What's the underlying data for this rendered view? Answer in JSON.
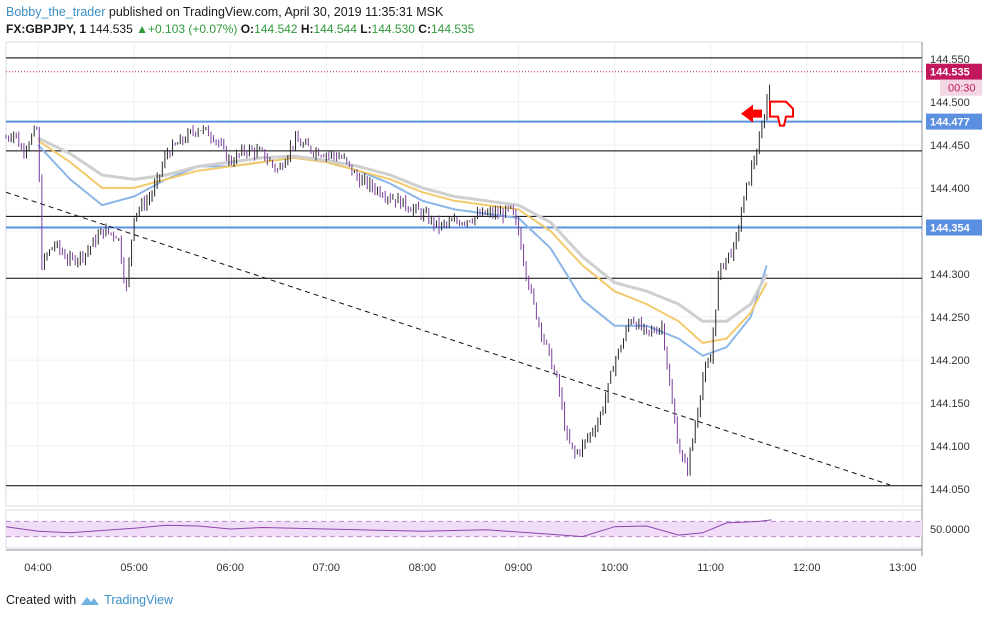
{
  "header": {
    "author": "Bobby_the_trader",
    "published": "published on TradingView.com, April 30, 2019 11:35:31 MSK",
    "symbol": "FX:GBPJPY, 1",
    "price": "144.535",
    "change_arrow": "▲",
    "change": "+0.103 (+0.07%)",
    "o_label": "O:",
    "o": "144.542",
    "h_label": "H:",
    "h": "144.544",
    "l_label": "L:",
    "l": "144.530",
    "c_label": "C:",
    "c": "144.535"
  },
  "footer": {
    "created_with": "Created with",
    "brand": "TradingView",
    "logo_icon": "tradingview-logo-icon"
  },
  "colors": {
    "candle": "#4a4a4a",
    "candle_up": "#2a2a2a",
    "candle_down": "#7b3f9e",
    "ma_fast": "#8ab6e8",
    "ma_mid": "#f2c96b",
    "ma_slow": "#cfcfcf",
    "level_blue": "#5b8fe0",
    "level_black": "#000000",
    "price_tag": "#c2185b",
    "rsi_line": "#8e44ad",
    "rsi_band": "#f1dcf7",
    "grid": "#eef0f3",
    "annotation_red": "#ff0000"
  },
  "chart_data": {
    "type": "candlestick",
    "instrument": "FX:GBPJPY",
    "timeframe": "1",
    "x_tick_labels": [
      "04:00",
      "05:00",
      "06:00",
      "07:00",
      "08:00",
      "09:00",
      "10:00",
      "11:00",
      "12:00",
      "13:00"
    ],
    "y_tick_labels": [
      "144.550",
      "144.500",
      "144.450",
      "144.400",
      "144.350",
      "144.300",
      "144.250",
      "144.200",
      "144.150",
      "144.100",
      "144.050"
    ],
    "ylim": [
      144.02,
      144.57
    ],
    "current_price": {
      "value": "144.535",
      "countdown": "00:30"
    },
    "horizontal_levels": [
      {
        "value": 144.551,
        "color": "black",
        "label": ""
      },
      {
        "value": 144.477,
        "color": "blue",
        "label": "144.477"
      },
      {
        "value": 144.443,
        "color": "black",
        "label": ""
      },
      {
        "value": 144.367,
        "color": "black",
        "label": ""
      },
      {
        "value": 144.354,
        "color": "blue",
        "label": "144.354"
      },
      {
        "value": 144.295,
        "color": "black",
        "label": ""
      },
      {
        "value": 144.054,
        "color": "black",
        "label": ""
      }
    ],
    "trendline": {
      "style": "dashed",
      "from": {
        "time": "03:40",
        "price": 144.395
      },
      "to": {
        "time": "12:52",
        "price": 144.055
      }
    },
    "price_path": [
      [
        "03:40",
        144.458
      ],
      [
        "03:45",
        144.465
      ],
      [
        "03:50",
        144.443
      ],
      [
        "04:00",
        144.47
      ],
      [
        "04:02",
        144.31
      ],
      [
        "04:10",
        144.335
      ],
      [
        "04:20",
        144.315
      ],
      [
        "04:30",
        144.325
      ],
      [
        "04:40",
        144.35
      ],
      [
        "04:50",
        144.345
      ],
      [
        "04:55",
        144.28
      ],
      [
        "05:00",
        144.37
      ],
      [
        "05:10",
        144.39
      ],
      [
        "05:15",
        144.41
      ],
      [
        "05:20",
        144.44
      ],
      [
        "05:30",
        144.455
      ],
      [
        "05:40",
        144.47
      ],
      [
        "05:50",
        144.46
      ],
      [
        "06:00",
        144.43
      ],
      [
        "06:10",
        144.445
      ],
      [
        "06:20",
        144.44
      ],
      [
        "06:30",
        144.42
      ],
      [
        "06:40",
        144.455
      ],
      [
        "06:50",
        144.445
      ],
      [
        "07:00",
        144.44
      ],
      [
        "07:10",
        144.435
      ],
      [
        "07:20",
        144.41
      ],
      [
        "07:30",
        144.4
      ],
      [
        "07:40",
        144.39
      ],
      [
        "07:50",
        144.38
      ],
      [
        "08:00",
        144.37
      ],
      [
        "08:10",
        144.355
      ],
      [
        "08:20",
        144.36
      ],
      [
        "08:30",
        144.365
      ],
      [
        "08:40",
        144.37
      ],
      [
        "08:50",
        144.37
      ],
      [
        "08:55",
        144.375
      ],
      [
        "09:00",
        144.35
      ],
      [
        "09:05",
        144.3
      ],
      [
        "09:10",
        144.26
      ],
      [
        "09:15",
        144.23
      ],
      [
        "09:20",
        144.2
      ],
      [
        "09:25",
        144.17
      ],
      [
        "09:30",
        144.11
      ],
      [
        "09:35",
        144.09
      ],
      [
        "09:40",
        144.1
      ],
      [
        "09:50",
        144.13
      ],
      [
        "09:55",
        144.16
      ],
      [
        "10:00",
        144.2
      ],
      [
        "10:05",
        144.22
      ],
      [
        "10:10",
        144.25
      ],
      [
        "10:20",
        144.23
      ],
      [
        "10:30",
        144.24
      ],
      [
        "10:35",
        144.16
      ],
      [
        "10:40",
        144.1
      ],
      [
        "10:45",
        144.07
      ],
      [
        "10:50",
        144.12
      ],
      [
        "10:55",
        144.18
      ],
      [
        "11:00",
        144.2
      ],
      [
        "11:05",
        144.3
      ],
      [
        "11:10",
        144.32
      ],
      [
        "11:15",
        144.33
      ],
      [
        "11:20",
        144.38
      ],
      [
        "11:25",
        144.42
      ],
      [
        "11:30",
        144.45
      ],
      [
        "11:35",
        144.5
      ],
      [
        "11:38",
        144.535
      ]
    ],
    "moving_averages": [
      {
        "name": "",
        "color": "blue",
        "path": [
          [
            "04:00",
            144.45
          ],
          [
            "04:20",
            144.41
          ],
          [
            "04:40",
            144.38
          ],
          [
            "05:00",
            144.39
          ],
          [
            "05:20",
            144.41
          ],
          [
            "05:40",
            144.425
          ],
          [
            "06:00",
            144.425
          ],
          [
            "06:20",
            144.43
          ],
          [
            "06:40",
            144.435
          ],
          [
            "07:00",
            144.43
          ],
          [
            "07:20",
            144.42
          ],
          [
            "07:40",
            144.405
          ],
          [
            "08:00",
            144.385
          ],
          [
            "08:20",
            144.375
          ],
          [
            "08:40",
            144.37
          ],
          [
            "09:00",
            144.365
          ],
          [
            "09:20",
            144.33
          ],
          [
            "09:40",
            144.27
          ],
          [
            "10:00",
            144.24
          ],
          [
            "10:20",
            144.24
          ],
          [
            "10:40",
            144.225
          ],
          [
            "10:55",
            144.205
          ],
          [
            "11:10",
            144.215
          ],
          [
            "11:25",
            144.25
          ],
          [
            "11:35",
            144.31
          ]
        ]
      },
      {
        "name": "",
        "color": "orange",
        "path": [
          [
            "04:00",
            144.455
          ],
          [
            "04:20",
            144.43
          ],
          [
            "04:40",
            144.4
          ],
          [
            "05:00",
            144.4
          ],
          [
            "05:20",
            144.41
          ],
          [
            "05:40",
            144.42
          ],
          [
            "06:00",
            144.425
          ],
          [
            "06:20",
            144.43
          ],
          [
            "06:40",
            144.435
          ],
          [
            "07:00",
            144.43
          ],
          [
            "07:20",
            144.42
          ],
          [
            "07:40",
            144.41
          ],
          [
            "08:00",
            144.395
          ],
          [
            "08:20",
            144.385
          ],
          [
            "08:40",
            144.38
          ],
          [
            "09:00",
            144.375
          ],
          [
            "09:20",
            144.35
          ],
          [
            "09:40",
            144.31
          ],
          [
            "10:00",
            144.28
          ],
          [
            "10:20",
            144.265
          ],
          [
            "10:40",
            144.245
          ],
          [
            "10:55",
            144.22
          ],
          [
            "11:10",
            144.225
          ],
          [
            "11:25",
            144.255
          ],
          [
            "11:35",
            144.29
          ]
        ]
      },
      {
        "name": "",
        "color": "gray",
        "path": [
          [
            "04:00",
            144.458
          ],
          [
            "04:20",
            144.44
          ],
          [
            "04:40",
            144.415
          ],
          [
            "05:00",
            144.41
          ],
          [
            "05:20",
            144.415
          ],
          [
            "05:40",
            144.425
          ],
          [
            "06:00",
            144.43
          ],
          [
            "06:20",
            144.435
          ],
          [
            "06:40",
            144.437
          ],
          [
            "07:00",
            144.432
          ],
          [
            "07:20",
            144.425
          ],
          [
            "07:40",
            144.415
          ],
          [
            "08:00",
            144.4
          ],
          [
            "08:20",
            144.39
          ],
          [
            "08:40",
            144.385
          ],
          [
            "09:00",
            144.38
          ],
          [
            "09:20",
            144.36
          ],
          [
            "09:40",
            144.32
          ],
          [
            "10:00",
            144.29
          ],
          [
            "10:20",
            144.28
          ],
          [
            "10:40",
            144.265
          ],
          [
            "10:55",
            144.245
          ],
          [
            "11:10",
            144.245
          ],
          [
            "11:25",
            144.265
          ],
          [
            "11:35",
            144.3
          ]
        ]
      }
    ],
    "rsi_pane": {
      "level_label": "50.0000",
      "band_upper": 70,
      "band_lower": 30,
      "path": [
        [
          "03:40",
          56
        ],
        [
          "04:00",
          44
        ],
        [
          "04:20",
          40
        ],
        [
          "04:40",
          46
        ],
        [
          "05:00",
          52
        ],
        [
          "05:20",
          60
        ],
        [
          "05:40",
          58
        ],
        [
          "06:00",
          50
        ],
        [
          "06:20",
          54
        ],
        [
          "06:40",
          52
        ],
        [
          "07:00",
          50
        ],
        [
          "07:20",
          48
        ],
        [
          "07:40",
          46
        ],
        [
          "08:00",
          44
        ],
        [
          "08:20",
          46
        ],
        [
          "08:40",
          48
        ],
        [
          "09:00",
          42
        ],
        [
          "09:20",
          36
        ],
        [
          "09:40",
          30
        ],
        [
          "10:00",
          56
        ],
        [
          "10:20",
          58
        ],
        [
          "10:40",
          34
        ],
        [
          "10:55",
          40
        ],
        [
          "11:10",
          66
        ],
        [
          "11:30",
          70
        ],
        [
          "11:38",
          74
        ]
      ]
    }
  }
}
